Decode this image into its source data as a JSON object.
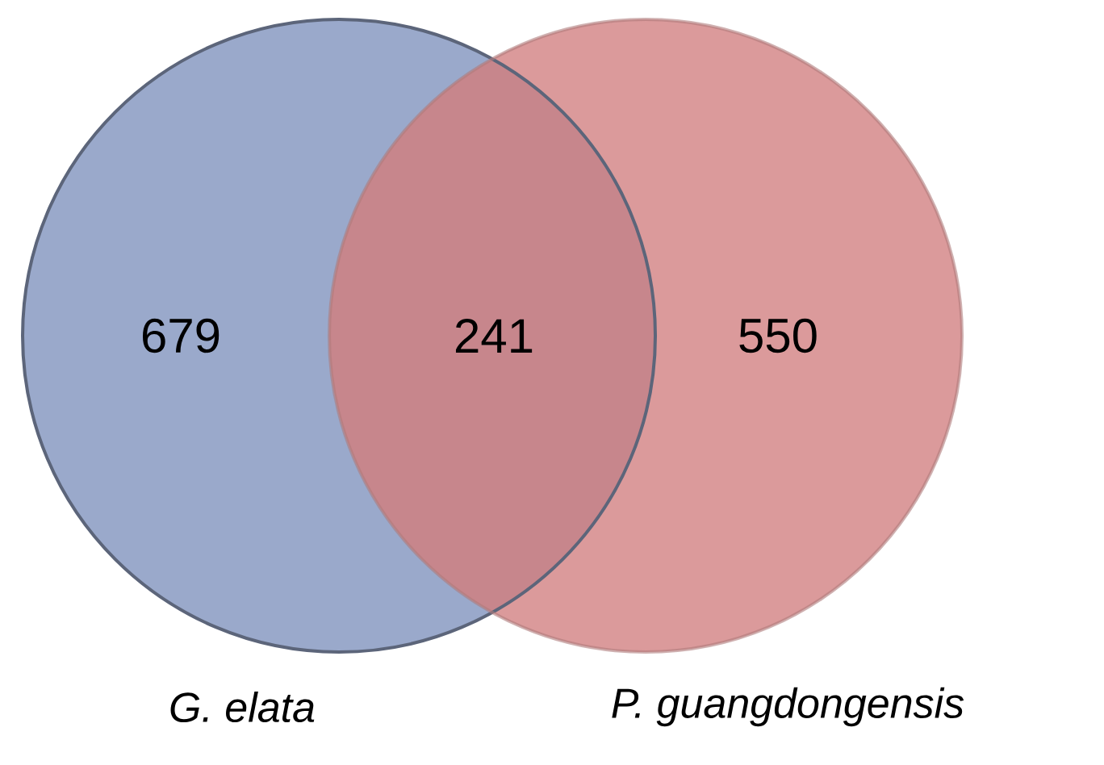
{
  "chart_data": {
    "type": "other",
    "categories": [
      null,
      null,
      null
    ],
    "values": [
      679,
      241,
      550
    ],
    "data_labels": true,
    "colors": [
      "#9aa9cb",
      "#c7868c",
      "#db9a9b"
    ],
    "annotations": [
      "G. elata",
      "P. guangdongensis"
    ]
  }
}
